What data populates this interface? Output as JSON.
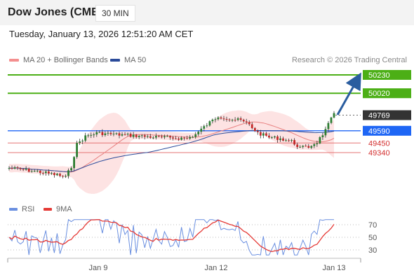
{
  "header": {
    "instrument": "Dow Jones (CME)",
    "timeframe": "30 MIN",
    "datetime": "Tuesday, January 13, 2026 12:51:20 AM CET"
  },
  "legend": {
    "bollinger": "MA 20 + Bollinger Bands",
    "ma50": "MA 50",
    "rsi": "RSI",
    "rsi_ma": "9MA"
  },
  "copyright": "Research © 2026 Trading Central",
  "colors": {
    "up_candle": "#2e7d32",
    "down_candle": "#c62828",
    "target_line": "#4caf16",
    "pivot_line": "#1e66f5",
    "support_line": "#e57373",
    "support_text": "#d32f2f",
    "current_price": "#333333",
    "bollinger_band": "#fde3e3",
    "ma20": "#e88080",
    "ma50": "#2b4b9a",
    "arrow": "#2a5d9f",
    "rsi": "#6a8fe0",
    "rsi_ma": "#e53935"
  },
  "price_levels": [
    {
      "label": "50230",
      "value": 50230,
      "type": "target"
    },
    {
      "label": "50020",
      "value": 50020,
      "type": "target"
    },
    {
      "label": "49769",
      "value": 49769,
      "type": "current"
    },
    {
      "label": "49590",
      "value": 49590,
      "type": "pivot"
    },
    {
      "label": "49450",
      "value": 49450,
      "type": "support"
    },
    {
      "label": "49340",
      "value": 49340,
      "type": "support"
    }
  ],
  "rsi_axis": {
    "ticks": [
      "70",
      "50",
      "30"
    ]
  },
  "time_axis": {
    "ticks": [
      "Jan 9",
      "Jan 12",
      "Jan 13"
    ]
  }
}
